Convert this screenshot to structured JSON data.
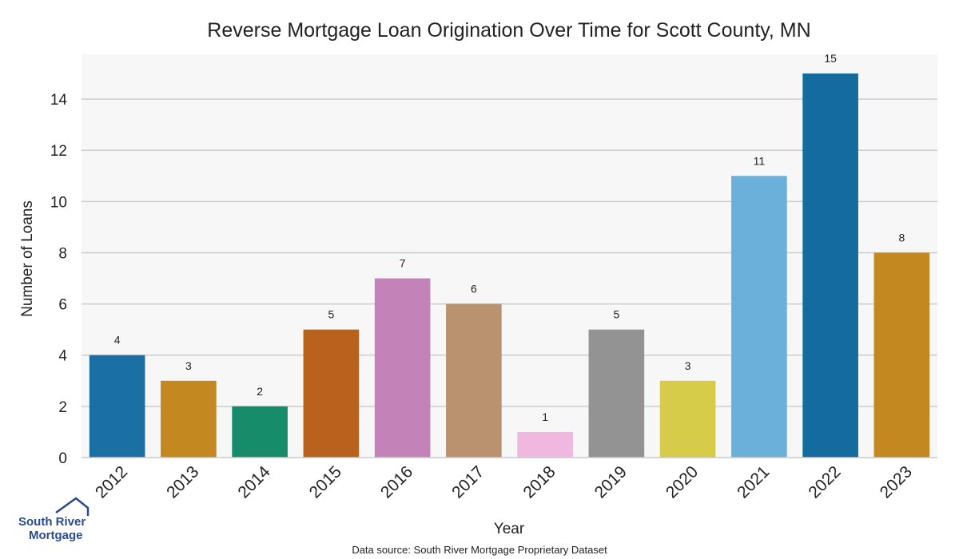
{
  "chart_data": {
    "type": "bar",
    "title": "Reverse Mortgage Loan Origination Over Time for Scott County, MN",
    "xlabel": "Year",
    "ylabel": "Number of Loans",
    "categories": [
      "2012",
      "2013",
      "2014",
      "2015",
      "2016",
      "2017",
      "2018",
      "2019",
      "2020",
      "2021",
      "2022",
      "2023"
    ],
    "values": [
      4,
      3,
      2,
      5,
      7,
      6,
      1,
      5,
      3,
      11,
      15,
      8
    ],
    "colors": [
      "#1a6fa3",
      "#c48820",
      "#178c6b",
      "#b8621d",
      "#c383b8",
      "#bb9270",
      "#f0b8de",
      "#939393",
      "#d6cc4a",
      "#6ab0da",
      "#146c9e",
      "#c48820"
    ],
    "yticks": [
      0,
      2,
      4,
      6,
      8,
      10,
      12,
      14
    ],
    "ylim": [
      0,
      15.75
    ],
    "grid": true,
    "background": "#f7f7f7"
  },
  "footer": {
    "source": "Data source: South River Mortgage Proprietary Dataset"
  },
  "logo": {
    "line1": "South River",
    "line2": "Mortgage"
  }
}
